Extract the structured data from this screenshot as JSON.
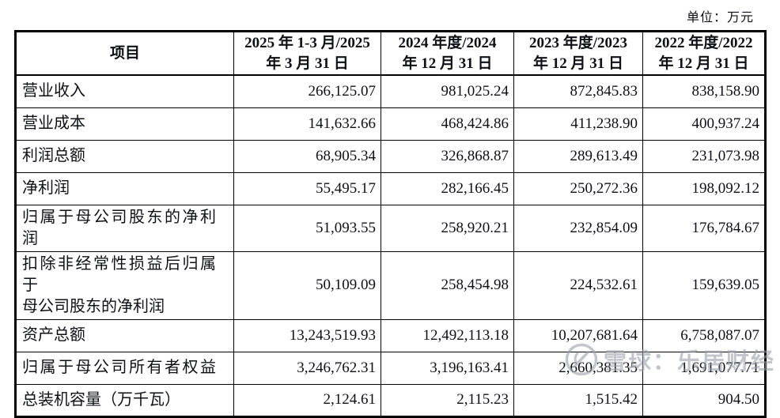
{
  "unit_label": "单位：万元",
  "table": {
    "columns": [
      {
        "line1": "项目",
        "line2": ""
      },
      {
        "line1": "2025 年 1-3 月/2025",
        "line2": "年 3 月 31 日"
      },
      {
        "line1": "2024 年度/2024",
        "line2": "年 12 月 31 日"
      },
      {
        "line1": "2023 年度/2023",
        "line2": "年 12 月 31 日"
      },
      {
        "line1": "2022 年度/2022",
        "line2": "年 12 月 31 日"
      }
    ],
    "rows": [
      {
        "label": "营业收入",
        "values": [
          "266,125.07",
          "981,025.24",
          "872,845.83",
          "838,158.90"
        ]
      },
      {
        "label": "营业成本",
        "values": [
          "141,632.66",
          "468,424.86",
          "411,238.90",
          "400,937.24"
        ]
      },
      {
        "label": "利润总额",
        "values": [
          "68,905.34",
          "326,868.87",
          "289,613.49",
          "231,073.98"
        ]
      },
      {
        "label": "净利润",
        "values": [
          "55,495.17",
          "282,166.45",
          "250,272.36",
          "198,092.12"
        ]
      },
      {
        "label": "归属于母公司股东的净利润",
        "values": [
          "51,093.55",
          "258,920.21",
          "232,854.09",
          "176,784.67"
        ]
      },
      {
        "label": "扣除非经常性损益后归属于",
        "label2": "母公司股东的净利润",
        "values": [
          "50,109.09",
          "258,454.98",
          "224,532.61",
          "159,639.05"
        ]
      },
      {
        "label": "资产总额",
        "values": [
          "13,243,519.93",
          "12,492,113.18",
          "10,207,681.64",
          "6,758,087.07"
        ]
      },
      {
        "label": "归属于母公司所有者权益",
        "values": [
          "3,246,762.31",
          "3,196,163.41",
          "2,660,381.35",
          "1,691,077.71"
        ]
      },
      {
        "label": "总装机容量（万千瓦）",
        "values": [
          "2,124.61",
          "2,115.23",
          "1,515.42",
          "904.50"
        ]
      }
    ]
  },
  "watermark": {
    "text": "雪球：乐居财经"
  }
}
